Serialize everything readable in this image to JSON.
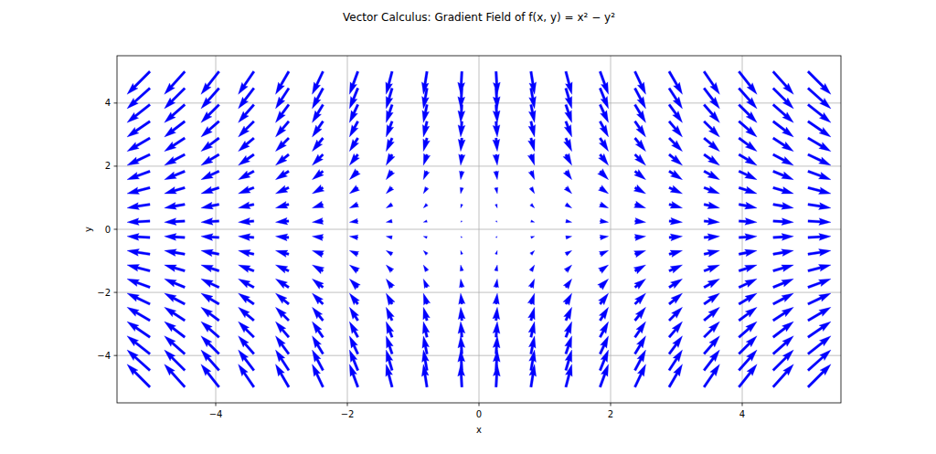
{
  "chart_data": {
    "type": "quiver",
    "title": "Vector Calculus: Gradient Field of f(x, y) = x² − y²",
    "x_label": "x",
    "y_label": "y",
    "color": "#0000ff",
    "grid": true,
    "xlim": [
      -5.5,
      5.5
    ],
    "ylim": [
      -5.5,
      5.5
    ],
    "xticks": [
      {
        "value": -4,
        "label": "−4"
      },
      {
        "value": -2,
        "label": "−2"
      },
      0,
      2,
      4
    ],
    "yticks": [
      {
        "value": -4,
        "label": "−4"
      },
      {
        "value": -2,
        "label": "−2"
      },
      0,
      2,
      4
    ],
    "x": [
      -5,
      -4.47,
      -3.95,
      -3.42,
      -2.89,
      -2.37,
      -1.84,
      -1.32,
      -0.79,
      -0.26,
      0.26,
      0.79,
      1.32,
      1.84,
      2.37,
      2.89,
      3.42,
      3.95,
      4.47,
      5
    ],
    "y": [
      -5,
      -4.47,
      -3.95,
      -3.42,
      -2.89,
      -2.37,
      -1.84,
      -1.32,
      -0.79,
      -0.26,
      0.26,
      0.79,
      1.32,
      1.84,
      2.37,
      2.89,
      3.42,
      3.95,
      4.47,
      5
    ],
    "u": [
      [
        -10,
        -8.95,
        -7.89,
        -6.84,
        -5.79,
        -4.74,
        -3.68,
        -2.63,
        -1.58,
        -0.53,
        0.53,
        1.58,
        2.63,
        3.68,
        4.74,
        5.79,
        6.84,
        7.89,
        8.95,
        10
      ],
      [
        -10,
        -8.95,
        -7.89,
        -6.84,
        -5.79,
        -4.74,
        -3.68,
        -2.63,
        -1.58,
        -0.53,
        0.53,
        1.58,
        2.63,
        3.68,
        4.74,
        5.79,
        6.84,
        7.89,
        8.95,
        10
      ],
      [
        -10,
        -8.95,
        -7.89,
        -6.84,
        -5.79,
        -4.74,
        -3.68,
        -2.63,
        -1.58,
        -0.53,
        0.53,
        1.58,
        2.63,
        3.68,
        4.74,
        5.79,
        6.84,
        7.89,
        8.95,
        10
      ],
      [
        -10,
        -8.95,
        -7.89,
        -6.84,
        -5.79,
        -4.74,
        -3.68,
        -2.63,
        -1.58,
        -0.53,
        0.53,
        1.58,
        2.63,
        3.68,
        4.74,
        5.79,
        6.84,
        7.89,
        8.95,
        10
      ],
      [
        -10,
        -8.95,
        -7.89,
        -6.84,
        -5.79,
        -4.74,
        -3.68,
        -2.63,
        -1.58,
        -0.53,
        0.53,
        1.58,
        2.63,
        3.68,
        4.74,
        5.79,
        6.84,
        7.89,
        8.95,
        10
      ],
      [
        -10,
        -8.95,
        -7.89,
        -6.84,
        -5.79,
        -4.74,
        -3.68,
        -2.63,
        -1.58,
        -0.53,
        0.53,
        1.58,
        2.63,
        3.68,
        4.74,
        5.79,
        6.84,
        7.89,
        8.95,
        10
      ],
      [
        -10,
        -8.95,
        -7.89,
        -6.84,
        -5.79,
        -4.74,
        -3.68,
        -2.63,
        -1.58,
        -0.53,
        0.53,
        1.58,
        2.63,
        3.68,
        4.74,
        5.79,
        6.84,
        7.89,
        8.95,
        10
      ],
      [
        -10,
        -8.95,
        -7.89,
        -6.84,
        -5.79,
        -4.74,
        -3.68,
        -2.63,
        -1.58,
        -0.53,
        0.53,
        1.58,
        2.63,
        3.68,
        4.74,
        5.79,
        6.84,
        7.89,
        8.95,
        10
      ],
      [
        -10,
        -8.95,
        -7.89,
        -6.84,
        -5.79,
        -4.74,
        -3.68,
        -2.63,
        -1.58,
        -0.53,
        0.53,
        1.58,
        2.63,
        3.68,
        4.74,
        5.79,
        6.84,
        7.89,
        8.95,
        10
      ],
      [
        -10,
        -8.95,
        -7.89,
        -6.84,
        -5.79,
        -4.74,
        -3.68,
        -2.63,
        -1.58,
        -0.53,
        0.53,
        1.58,
        2.63,
        3.68,
        4.74,
        5.79,
        6.84,
        7.89,
        8.95,
        10
      ],
      [
        -10,
        -8.95,
        -7.89,
        -6.84,
        -5.79,
        -4.74,
        -3.68,
        -2.63,
        -1.58,
        -0.53,
        0.53,
        1.58,
        2.63,
        3.68,
        4.74,
        5.79,
        6.84,
        7.89,
        8.95,
        10
      ],
      [
        -10,
        -8.95,
        -7.89,
        -6.84,
        -5.79,
        -4.74,
        -3.68,
        -2.63,
        -1.58,
        -0.53,
        0.53,
        1.58,
        2.63,
        3.68,
        4.74,
        5.79,
        6.84,
        7.89,
        8.95,
        10
      ],
      [
        -10,
        -8.95,
        -7.89,
        -6.84,
        -5.79,
        -4.74,
        -3.68,
        -2.63,
        -1.58,
        -0.53,
        0.53,
        1.58,
        2.63,
        3.68,
        4.74,
        5.79,
        6.84,
        7.89,
        8.95,
        10
      ],
      [
        -10,
        -8.95,
        -7.89,
        -6.84,
        -5.79,
        -4.74,
        -3.68,
        -2.63,
        -1.58,
        -0.53,
        0.53,
        1.58,
        2.63,
        3.68,
        4.74,
        5.79,
        6.84,
        7.89,
        8.95,
        10
      ],
      [
        -10,
        -8.95,
        -7.89,
        -6.84,
        -5.79,
        -4.74,
        -3.68,
        -2.63,
        -1.58,
        -0.53,
        0.53,
        1.58,
        2.63,
        3.68,
        4.74,
        5.79,
        6.84,
        7.89,
        8.95,
        10
      ],
      [
        -10,
        -8.95,
        -7.89,
        -6.84,
        -5.79,
        -4.74,
        -3.68,
        -2.63,
        -1.58,
        -0.53,
        0.53,
        1.58,
        2.63,
        3.68,
        4.74,
        5.79,
        6.84,
        7.89,
        8.95,
        10
      ],
      [
        -10,
        -8.95,
        -7.89,
        -6.84,
        -5.79,
        -4.74,
        -3.68,
        -2.63,
        -1.58,
        -0.53,
        0.53,
        1.58,
        2.63,
        3.68,
        4.74,
        5.79,
        6.84,
        7.89,
        8.95,
        10
      ],
      [
        -10,
        -8.95,
        -7.89,
        -6.84,
        -5.79,
        -4.74,
        -3.68,
        -2.63,
        -1.58,
        -0.53,
        0.53,
        1.58,
        2.63,
        3.68,
        4.74,
        5.79,
        6.84,
        7.89,
        8.95,
        10
      ],
      [
        -10,
        -8.95,
        -7.89,
        -6.84,
        -5.79,
        -4.74,
        -3.68,
        -2.63,
        -1.58,
        -0.53,
        0.53,
        1.58,
        2.63,
        3.68,
        4.74,
        5.79,
        6.84,
        7.89,
        8.95,
        10
      ],
      [
        -10,
        -8.95,
        -7.89,
        -6.84,
        -5.79,
        -4.74,
        -3.68,
        -2.63,
        -1.58,
        -0.53,
        0.53,
        1.58,
        2.63,
        3.68,
        4.74,
        5.79,
        6.84,
        7.89,
        8.95,
        10
      ]
    ],
    "v": [
      [
        10,
        10,
        10,
        10,
        10,
        10,
        10,
        10,
        10,
        10,
        10,
        10,
        10,
        10,
        10,
        10,
        10,
        10,
        10,
        10
      ],
      [
        8.95,
        8.95,
        8.95,
        8.95,
        8.95,
        8.95,
        8.95,
        8.95,
        8.95,
        8.95,
        8.95,
        8.95,
        8.95,
        8.95,
        8.95,
        8.95,
        8.95,
        8.95,
        8.95,
        8.95
      ],
      [
        7.89,
        7.89,
        7.89,
        7.89,
        7.89,
        7.89,
        7.89,
        7.89,
        7.89,
        7.89,
        7.89,
        7.89,
        7.89,
        7.89,
        7.89,
        7.89,
        7.89,
        7.89,
        7.89,
        7.89
      ],
      [
        6.84,
        6.84,
        6.84,
        6.84,
        6.84,
        6.84,
        6.84,
        6.84,
        6.84,
        6.84,
        6.84,
        6.84,
        6.84,
        6.84,
        6.84,
        6.84,
        6.84,
        6.84,
        6.84,
        6.84
      ],
      [
        5.79,
        5.79,
        5.79,
        5.79,
        5.79,
        5.79,
        5.79,
        5.79,
        5.79,
        5.79,
        5.79,
        5.79,
        5.79,
        5.79,
        5.79,
        5.79,
        5.79,
        5.79,
        5.79,
        5.79
      ],
      [
        4.74,
        4.74,
        4.74,
        4.74,
        4.74,
        4.74,
        4.74,
        4.74,
        4.74,
        4.74,
        4.74,
        4.74,
        4.74,
        4.74,
        4.74,
        4.74,
        4.74,
        4.74,
        4.74,
        4.74
      ],
      [
        3.68,
        3.68,
        3.68,
        3.68,
        3.68,
        3.68,
        3.68,
        3.68,
        3.68,
        3.68,
        3.68,
        3.68,
        3.68,
        3.68,
        3.68,
        3.68,
        3.68,
        3.68,
        3.68,
        3.68
      ],
      [
        2.63,
        2.63,
        2.63,
        2.63,
        2.63,
        2.63,
        2.63,
        2.63,
        2.63,
        2.63,
        2.63,
        2.63,
        2.63,
        2.63,
        2.63,
        2.63,
        2.63,
        2.63,
        2.63,
        2.63
      ],
      [
        1.58,
        1.58,
        1.58,
        1.58,
        1.58,
        1.58,
        1.58,
        1.58,
        1.58,
        1.58,
        1.58,
        1.58,
        1.58,
        1.58,
        1.58,
        1.58,
        1.58,
        1.58,
        1.58,
        1.58
      ],
      [
        0.53,
        0.53,
        0.53,
        0.53,
        0.53,
        0.53,
        0.53,
        0.53,
        0.53,
        0.53,
        0.53,
        0.53,
        0.53,
        0.53,
        0.53,
        0.53,
        0.53,
        0.53,
        0.53,
        0.53
      ],
      [
        -0.53,
        -0.53,
        -0.53,
        -0.53,
        -0.53,
        -0.53,
        -0.53,
        -0.53,
        -0.53,
        -0.53,
        -0.53,
        -0.53,
        -0.53,
        -0.53,
        -0.53,
        -0.53,
        -0.53,
        -0.53,
        -0.53,
        -0.53
      ],
      [
        -1.58,
        -1.58,
        -1.58,
        -1.58,
        -1.58,
        -1.58,
        -1.58,
        -1.58,
        -1.58,
        -1.58,
        -1.58,
        -1.58,
        -1.58,
        -1.58,
        -1.58,
        -1.58,
        -1.58,
        -1.58,
        -1.58,
        -1.58
      ],
      [
        -2.63,
        -2.63,
        -2.63,
        -2.63,
        -2.63,
        -2.63,
        -2.63,
        -2.63,
        -2.63,
        -2.63,
        -2.63,
        -2.63,
        -2.63,
        -2.63,
        -2.63,
        -2.63,
        -2.63,
        -2.63,
        -2.63,
        -2.63
      ],
      [
        -3.68,
        -3.68,
        -3.68,
        -3.68,
        -3.68,
        -3.68,
        -3.68,
        -3.68,
        -3.68,
        -3.68,
        -3.68,
        -3.68,
        -3.68,
        -3.68,
        -3.68,
        -3.68,
        -3.68,
        -3.68,
        -3.68,
        -3.68
      ],
      [
        -4.74,
        -4.74,
        -4.74,
        -4.74,
        -4.74,
        -4.74,
        -4.74,
        -4.74,
        -4.74,
        -4.74,
        -4.74,
        -4.74,
        -4.74,
        -4.74,
        -4.74,
        -4.74,
        -4.74,
        -4.74,
        -4.74,
        -4.74
      ],
      [
        -5.79,
        -5.79,
        -5.79,
        -5.79,
        -5.79,
        -5.79,
        -5.79,
        -5.79,
        -5.79,
        -5.79,
        -5.79,
        -5.79,
        -5.79,
        -5.79,
        -5.79,
        -5.79,
        -5.79,
        -5.79,
        -5.79,
        -5.79
      ],
      [
        -6.84,
        -6.84,
        -6.84,
        -6.84,
        -6.84,
        -6.84,
        -6.84,
        -6.84,
        -6.84,
        -6.84,
        -6.84,
        -6.84,
        -6.84,
        -6.84,
        -6.84,
        -6.84,
        -6.84,
        -6.84,
        -6.84,
        -6.84
      ],
      [
        -7.89,
        -7.89,
        -7.89,
        -7.89,
        -7.89,
        -7.89,
        -7.89,
        -7.89,
        -7.89,
        -7.89,
        -7.89,
        -7.89,
        -7.89,
        -7.89,
        -7.89,
        -7.89,
        -7.89,
        -7.89,
        -7.89,
        -7.89
      ],
      [
        -8.95,
        -8.95,
        -8.95,
        -8.95,
        -8.95,
        -8.95,
        -8.95,
        -8.95,
        -8.95,
        -8.95,
        -8.95,
        -8.95,
        -8.95,
        -8.95,
        -8.95,
        -8.95,
        -8.95,
        -8.95,
        -8.95,
        -8.95
      ],
      [
        -10,
        -10,
        -10,
        -10,
        -10,
        -10,
        -10,
        -10,
        -10,
        -10,
        -10,
        -10,
        -10,
        -10,
        -10,
        -10,
        -10,
        -10,
        -10,
        -10
      ]
    ]
  }
}
